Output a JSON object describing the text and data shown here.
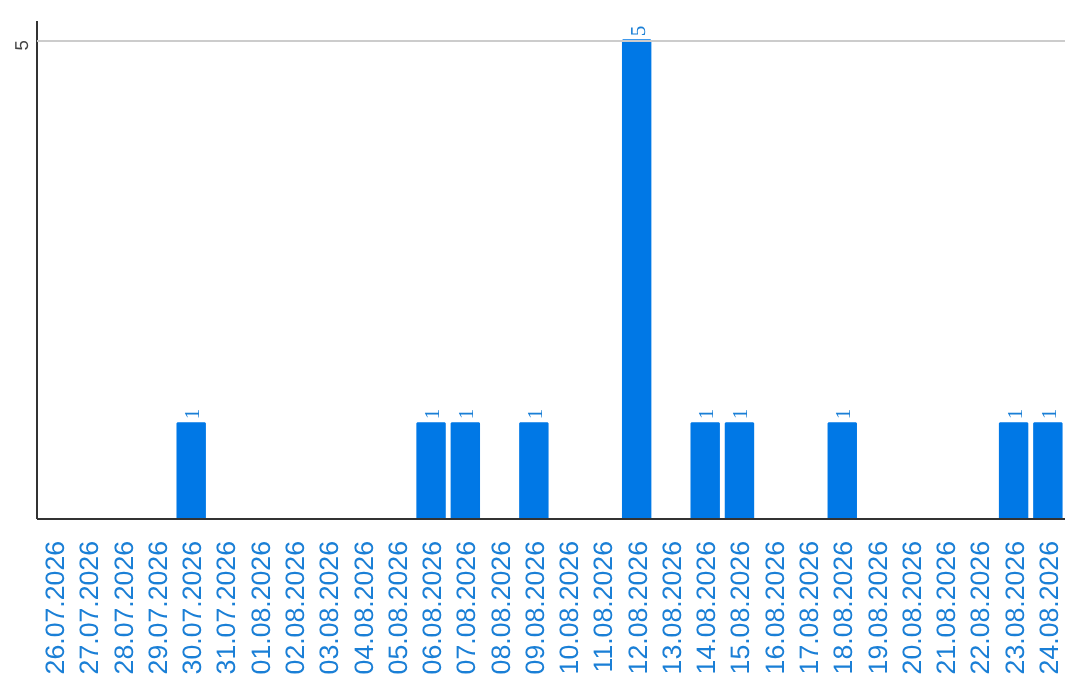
{
  "chart_data": {
    "type": "bar",
    "categories": [
      "26.07.2026",
      "27.07.2026",
      "28.07.2026",
      "29.07.2026",
      "30.07.2026",
      "31.07.2026",
      "01.08.2026",
      "02.08.2026",
      "03.08.2026",
      "04.08.2026",
      "05.08.2026",
      "06.08.2026",
      "07.08.2026",
      "08.08.2026",
      "09.08.2026",
      "10.08.2026",
      "11.08.2026",
      "12.08.2026",
      "13.08.2026",
      "14.08.2026",
      "15.08.2026",
      "16.08.2026",
      "17.08.2026",
      "18.08.2026",
      "19.08.2026",
      "20.08.2026",
      "21.08.2026",
      "22.08.2026",
      "23.08.2026",
      "24.08.2026"
    ],
    "values": [
      0,
      0,
      0,
      0,
      1,
      0,
      0,
      0,
      0,
      0,
      0,
      1,
      1,
      0,
      1,
      0,
      0,
      5,
      0,
      1,
      1,
      0,
      0,
      1,
      0,
      0,
      0,
      0,
      1,
      1
    ],
    "value_labels": [
      null,
      null,
      null,
      null,
      "1",
      null,
      null,
      null,
      null,
      null,
      null,
      "1",
      "1",
      null,
      "1",
      null,
      null,
      "5",
      null,
      "1",
      "1",
      null,
      null,
      "1",
      null,
      null,
      null,
      null,
      "1",
      "1"
    ],
    "color": "#0078e6",
    "ylim": [
      0,
      5.2
    ],
    "yticks": [
      5
    ],
    "grid": "y"
  }
}
